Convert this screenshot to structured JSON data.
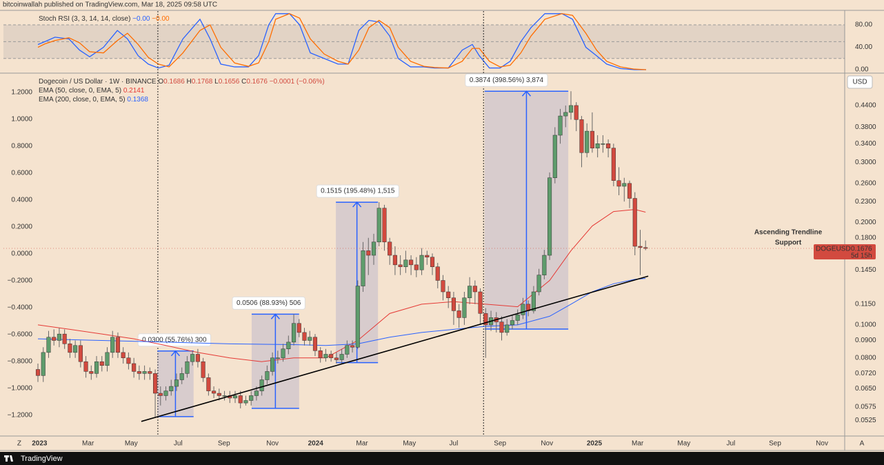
{
  "header": {
    "publisher": "bitcoinwallah published on TradingView.com, Mar 18, 2025 09:58 UTC"
  },
  "footer": {
    "brand": "TradingView",
    "auto_button": "A"
  },
  "chart_data": [
    {
      "type": "line",
      "title": "Stoch RSI (3, 3, 14, 14, close)",
      "xlim": [
        -6.47,
        151.36
      ],
      "ylim": [
        -4.9,
        102.2
      ],
      "yticks": [
        {
          "value": 80,
          "label": "80.00"
        },
        {
          "value": 40,
          "label": "40.00"
        },
        {
          "value": 0,
          "label": "0.00"
        }
      ],
      "band": [
        20,
        80
      ],
      "guides": [
        20,
        50,
        80
      ],
      "x": [
        0,
        1.3,
        3.2,
        5.8,
        7.8,
        9.7,
        12.3,
        14.9,
        16.8,
        18.8,
        20.7,
        22.6,
        24.6,
        27.2,
        30.4,
        32.3,
        34.3,
        36.9,
        39.5,
        41.4,
        43.3,
        44.6,
        47.2,
        49.1,
        51.1,
        53.7,
        56.3,
        58.2,
        60.2,
        62.1,
        64.0,
        66.0,
        67.6,
        69.9,
        72.4,
        74.4,
        77.0,
        79.6,
        81.5,
        82.8,
        84.7,
        86.7,
        88.6,
        90.6,
        92.5,
        95.1,
        98.3,
        100.3,
        102.8,
        104.8,
        106.7,
        109.3,
        111.9,
        114.1
      ],
      "series": [
        {
          "color": "#2962ff",
          "legend_value": "−0.00",
          "values": [
            45,
            50,
            58,
            55,
            35,
            23,
            40,
            70,
            55,
            25,
            10,
            3,
            8,
            55,
            90,
            55,
            10,
            5,
            5,
            25,
            80,
            100,
            100,
            80,
            30,
            20,
            10,
            10,
            70,
            88,
            85,
            60,
            20,
            5,
            5,
            3,
            3,
            35,
            45,
            25,
            3,
            3,
            15,
            50,
            75,
            100,
            100,
            90,
            40,
            25,
            10,
            2,
            0,
            0
          ]
        },
        {
          "color": "#ff6d00",
          "legend_value": "−0.00",
          "values": [
            40,
            46,
            52,
            57,
            48,
            32,
            30,
            52,
            65,
            45,
            22,
            10,
            5,
            30,
            70,
            80,
            40,
            12,
            6,
            12,
            50,
            90,
            100,
            92,
            55,
            28,
            15,
            10,
            35,
            75,
            88,
            75,
            40,
            15,
            6,
            4,
            3,
            15,
            38,
            38,
            15,
            5,
            8,
            30,
            60,
            90,
            100,
            97,
            65,
            35,
            15,
            5,
            1,
            0
          ]
        }
      ]
    },
    {
      "type": "candlestick",
      "title": "Dogecoin / US Dollar · 1W · BINANCE",
      "ohlc_keys": [
        "O",
        "H",
        "L",
        "C"
      ],
      "change": "−0.0001 (−0.06%)",
      "currency": "USD",
      "symbol": "DOGEUSD",
      "countdown": "5d 15h",
      "log": true,
      "up_color": "#5e9c6c",
      "down_color": "#d24a3f",
      "xlim": [
        -6.47,
        151.36
      ],
      "ylim": [
        0.0472,
        0.545
      ],
      "xticks": [
        {
          "value": -3.5,
          "label": "Z"
        },
        {
          "value": 0.3,
          "label": "2023"
        },
        {
          "value": 9.4,
          "label": "Mar"
        },
        {
          "value": 17.5,
          "label": "May"
        },
        {
          "value": 26.3,
          "label": "Jul"
        },
        {
          "value": 34.9,
          "label": "Sep"
        },
        {
          "value": 44.0,
          "label": "Nov"
        },
        {
          "value": 52.1,
          "label": "2024"
        },
        {
          "value": 60.8,
          "label": "Mar"
        },
        {
          "value": 69.7,
          "label": "May"
        },
        {
          "value": 78.0,
          "label": "Jul"
        },
        {
          "value": 86.7,
          "label": "Sep"
        },
        {
          "value": 95.5,
          "label": "Nov"
        },
        {
          "value": 104.4,
          "label": "2025"
        },
        {
          "value": 112.5,
          "label": "Mar"
        },
        {
          "value": 121.2,
          "label": "May"
        },
        {
          "value": 130.0,
          "label": "Jul"
        },
        {
          "value": 138.3,
          "label": "Sep"
        },
        {
          "value": 147.1,
          "label": "Nov"
        }
      ],
      "yticks": [
        {
          "value": 0.44,
          "label": "0.4400"
        },
        {
          "value": 0.38,
          "label": "0.3800"
        },
        {
          "value": 0.34,
          "label": "0.3400"
        },
        {
          "value": 0.3,
          "label": "0.3000"
        },
        {
          "value": 0.26,
          "label": "0.2600"
        },
        {
          "value": 0.23,
          "label": "0.2300"
        },
        {
          "value": 0.2,
          "label": "0.2000"
        },
        {
          "value": 0.18,
          "label": "0.1800"
        },
        {
          "value": 0.145,
          "label": "0.1450"
        },
        {
          "value": 0.115,
          "label": "0.1150"
        },
        {
          "value": 0.1,
          "label": "0.1000"
        },
        {
          "value": 0.09,
          "label": "0.0900"
        },
        {
          "value": 0.08,
          "label": "0.0800"
        },
        {
          "value": 0.072,
          "label": "0.0720"
        },
        {
          "value": 0.065,
          "label": "0.0650"
        },
        {
          "value": 0.0575,
          "label": "0.0575"
        },
        {
          "value": 0.0525,
          "label": "0.0525"
        }
      ],
      "y2lim": [
        -1.354,
        1.338
      ],
      "y2ticks": [
        {
          "value": 1.2,
          "label": "1.2000"
        },
        {
          "value": 1,
          "label": "1.0000"
        },
        {
          "value": 0.8,
          "label": "0.8000"
        },
        {
          "value": 0.6,
          "label": "0.6000"
        },
        {
          "value": 0.4,
          "label": "0.4000"
        },
        {
          "value": 0.2,
          "label": "0.2000"
        },
        {
          "value": 0,
          "label": "0.0000"
        },
        {
          "value": -0.2,
          "label": "−0.2000"
        },
        {
          "value": -0.4,
          "label": "−0.4000"
        },
        {
          "value": -0.6,
          "label": "−0.6000"
        },
        {
          "value": -0.8,
          "label": "−0.8000"
        },
        {
          "value": -1,
          "label": "−1.0000"
        },
        {
          "value": -1.2,
          "label": "−1.2000"
        }
      ],
      "open": [
        0.074,
        0.071,
        0.083,
        0.092,
        0.09,
        0.094,
        0.088,
        0.083,
        0.087,
        0.078,
        0.073,
        0.072,
        0.078,
        0.076,
        0.083,
        0.092,
        0.083,
        0.08,
        0.077,
        0.073,
        0.072,
        0.073,
        0.072,
        0.063,
        0.062,
        0.064,
        0.066,
        0.069,
        0.072,
        0.078,
        0.082,
        0.078,
        0.07,
        0.064,
        0.063,
        0.062,
        0.062,
        0.061,
        0.062,
        0.059,
        0.06,
        0.062,
        0.064,
        0.069,
        0.073,
        0.08,
        0.08,
        0.085,
        0.089,
        0.101,
        0.095,
        0.09,
        0.092,
        0.084,
        0.08,
        0.082,
        0.08,
        0.079,
        0.082,
        0.087,
        0.086,
        0.13,
        0.165,
        0.16,
        0.175,
        0.22,
        0.175,
        0.16,
        0.15,
        0.148,
        0.155,
        0.15,
        0.145,
        0.16,
        0.158,
        0.148,
        0.135,
        0.125,
        0.12,
        0.11,
        0.105,
        0.12,
        0.13,
        0.125,
        0.108,
        0.1,
        0.105,
        0.102,
        0.095,
        0.1,
        0.103,
        0.107,
        0.115,
        0.11,
        0.125,
        0.14,
        0.16,
        0.27,
        0.36,
        0.41,
        0.42,
        0.44,
        0.4,
        0.32,
        0.37,
        0.33,
        0.34,
        0.34,
        0.33,
        0.265,
        0.255,
        0.26,
        0.235,
        0.17,
        0.1686
      ],
      "high": [
        0.077,
        0.086,
        0.096,
        0.097,
        0.098,
        0.097,
        0.091,
        0.09,
        0.09,
        0.081,
        0.076,
        0.081,
        0.081,
        0.086,
        0.096,
        0.095,
        0.086,
        0.083,
        0.08,
        0.076,
        0.076,
        0.075,
        0.074,
        0.066,
        0.066,
        0.069,
        0.072,
        0.075,
        0.081,
        0.0838,
        0.085,
        0.08,
        0.072,
        0.066,
        0.065,
        0.064,
        0.064,
        0.064,
        0.064,
        0.062,
        0.064,
        0.066,
        0.071,
        0.076,
        0.083,
        0.084,
        0.088,
        0.093,
        0.1075,
        0.104,
        0.098,
        0.096,
        0.094,
        0.086,
        0.085,
        0.084,
        0.083,
        0.085,
        0.09,
        0.09,
        0.135,
        0.175,
        0.18,
        0.185,
        0.229,
        0.225,
        0.18,
        0.17,
        0.16,
        0.165,
        0.16,
        0.158,
        0.168,
        0.165,
        0.162,
        0.152,
        0.14,
        0.13,
        0.125,
        0.115,
        0.125,
        0.138,
        0.135,
        0.128,
        0.112,
        0.11,
        0.109,
        0.106,
        0.104,
        0.107,
        0.111,
        0.12,
        0.118,
        0.13,
        0.146,
        0.166,
        0.28,
        0.38,
        0.43,
        0.44,
        0.4846,
        0.45,
        0.41,
        0.39,
        0.42,
        0.36,
        0.36,
        0.35,
        0.34,
        0.29,
        0.27,
        0.265,
        0.245,
        0.19,
        0.1768
      ],
      "low": [
        0.068,
        0.068,
        0.08,
        0.087,
        0.086,
        0.085,
        0.08,
        0.08,
        0.075,
        0.07,
        0.069,
        0.07,
        0.073,
        0.073,
        0.08,
        0.08,
        0.077,
        0.074,
        0.07,
        0.069,
        0.069,
        0.069,
        0.0538,
        0.058,
        0.06,
        0.062,
        0.064,
        0.067,
        0.07,
        0.076,
        0.075,
        0.068,
        0.062,
        0.061,
        0.06,
        0.06,
        0.059,
        0.059,
        0.0569,
        0.058,
        0.058,
        0.06,
        0.062,
        0.067,
        0.071,
        0.077,
        0.078,
        0.082,
        0.087,
        0.092,
        0.087,
        0.087,
        0.081,
        0.0775,
        0.078,
        0.078,
        0.077,
        0.077,
        0.08,
        0.083,
        0.085,
        0.125,
        0.14,
        0.15,
        0.17,
        0.165,
        0.15,
        0.14,
        0.14,
        0.142,
        0.14,
        0.138,
        0.14,
        0.15,
        0.14,
        0.128,
        0.118,
        0.112,
        0.1,
        0.098,
        0.1,
        0.115,
        0.115,
        0.1,
        0.08,
        0.096,
        0.095,
        0.09,
        0.093,
        0.097,
        0.1,
        0.104,
        0.106,
        0.108,
        0.122,
        0.136,
        0.155,
        0.26,
        0.34,
        0.38,
        0.4,
        0.37,
        0.29,
        0.31,
        0.32,
        0.31,
        0.32,
        0.31,
        0.255,
        0.24,
        0.23,
        0.22,
        0.16,
        0.14,
        0.1656
      ],
      "close": [
        0.071,
        0.083,
        0.092,
        0.09,
        0.094,
        0.088,
        0.083,
        0.087,
        0.078,
        0.073,
        0.072,
        0.078,
        0.076,
        0.083,
        0.092,
        0.083,
        0.08,
        0.077,
        0.073,
        0.072,
        0.073,
        0.072,
        0.063,
        0.062,
        0.064,
        0.066,
        0.069,
        0.072,
        0.078,
        0.082,
        0.078,
        0.07,
        0.064,
        0.063,
        0.062,
        0.062,
        0.061,
        0.062,
        0.059,
        0.06,
        0.062,
        0.064,
        0.069,
        0.073,
        0.08,
        0.08,
        0.085,
        0.089,
        0.101,
        0.095,
        0.09,
        0.092,
        0.084,
        0.08,
        0.082,
        0.08,
        0.079,
        0.082,
        0.087,
        0.086,
        0.13,
        0.165,
        0.16,
        0.175,
        0.22,
        0.175,
        0.16,
        0.15,
        0.148,
        0.155,
        0.15,
        0.145,
        0.16,
        0.158,
        0.148,
        0.135,
        0.125,
        0.12,
        0.11,
        0.105,
        0.12,
        0.13,
        0.125,
        0.108,
        0.1,
        0.105,
        0.102,
        0.095,
        0.1,
        0.103,
        0.107,
        0.115,
        0.11,
        0.125,
        0.14,
        0.16,
        0.27,
        0.36,
        0.41,
        0.42,
        0.44,
        0.4,
        0.32,
        0.37,
        0.33,
        0.34,
        0.34,
        0.33,
        0.265,
        0.255,
        0.26,
        0.235,
        0.17,
        0.1686,
        0.1676
      ],
      "series": [
        {
          "name": "EMA (50, close, 0, EMA, 5)",
          "color": "#e53935",
          "x": [
            0,
            6,
            12,
            18,
            24,
            30,
            36,
            42,
            48,
            54,
            60,
            66,
            72,
            78,
            84,
            90,
            96,
            100,
            104,
            108,
            112,
            114
          ],
          "values": [
            0.1,
            0.097,
            0.094,
            0.091,
            0.087,
            0.083,
            0.08,
            0.078,
            0.08,
            0.08,
            0.09,
            0.108,
            0.115,
            0.117,
            0.115,
            0.113,
            0.135,
            0.165,
            0.195,
            0.215,
            0.218,
            0.2141
          ]
        },
        {
          "name": "EMA (200, close, 0, EMA, 5)",
          "color": "#2962ff",
          "x": [
            0,
            12,
            24,
            36,
            48,
            54,
            60,
            66,
            72,
            78,
            84,
            90,
            96,
            100,
            104,
            108,
            112,
            114
          ],
          "values": [
            0.091,
            0.09,
            0.089,
            0.088,
            0.0875,
            0.087,
            0.088,
            0.092,
            0.095,
            0.097,
            0.099,
            0.1,
            0.106,
            0.115,
            0.125,
            0.132,
            0.136,
            0.1368
          ]
        }
      ],
      "measures": [
        {
          "label": "0.0300 (55.76%) 300",
          "x": [
            22.4,
            29.2
          ],
          "low": 0.0538,
          "high": 0.0838
        },
        {
          "label": "0.0506 (88.93%) 506",
          "x": [
            40.1,
            49.0
          ],
          "low": 0.0569,
          "high": 0.1075
        },
        {
          "label": "0.1515 (195.48%) 1,515",
          "x": [
            55.9,
            63.8
          ],
          "low": 0.0775,
          "high": 0.229
        },
        {
          "label": "0.3874 (398.56%) 3,874",
          "x": [
            83.8,
            99.5
          ],
          "low": 0.0972,
          "high": 0.4846
        }
      ],
      "trendline": {
        "x": [
          19.4,
          114.5
        ],
        "values": [
          0.0521,
          0.139
        ],
        "color": "#000000",
        "label": [
          "Ascending Trendline",
          "Support"
        ]
      },
      "vlines": [
        22.5,
        83.6
      ]
    }
  ]
}
